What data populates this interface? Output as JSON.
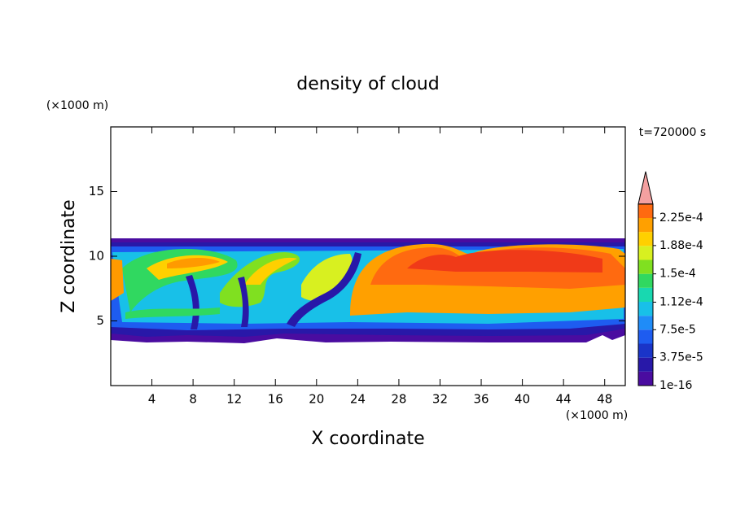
{
  "chart_data": {
    "type": "contour",
    "title": "density of cloud",
    "xlabel": "X coordinate",
    "ylabel": "Z coordinate",
    "x_unit": "(×1000 m)",
    "y_unit": "(×1000 m)",
    "time_label": "t=720000 s",
    "xlim": [
      0,
      50
    ],
    "ylim": [
      0,
      20
    ],
    "xticks": [
      4,
      8,
      12,
      16,
      20,
      24,
      28,
      32,
      36,
      40,
      44,
      48
    ],
    "yticks": [
      5,
      10,
      15
    ],
    "colorbar": {
      "ticks": [
        {
          "value": 1e-16,
          "label": "1e-16"
        },
        {
          "value": 3.75e-05,
          "label": "3.75e-5"
        },
        {
          "value": 7.5e-05,
          "label": "7.5e-5"
        },
        {
          "value": 0.000112,
          "label": "1.12e-4"
        },
        {
          "value": 0.00015,
          "label": "1.5e-4"
        },
        {
          "value": 0.000188,
          "label": "1.88e-4"
        },
        {
          "value": 0.000225,
          "label": "2.25e-4"
        }
      ],
      "colors": [
        "#4a0ca0",
        "#2818a8",
        "#1a34c8",
        "#1e5cf0",
        "#1f8cf8",
        "#18c0e8",
        "#18d8b0",
        "#30d860",
        "#80e020",
        "#d8f020",
        "#ffd000",
        "#ffa000",
        "#ff6a10"
      ],
      "extend_color": "#f4a0a0"
    }
  }
}
